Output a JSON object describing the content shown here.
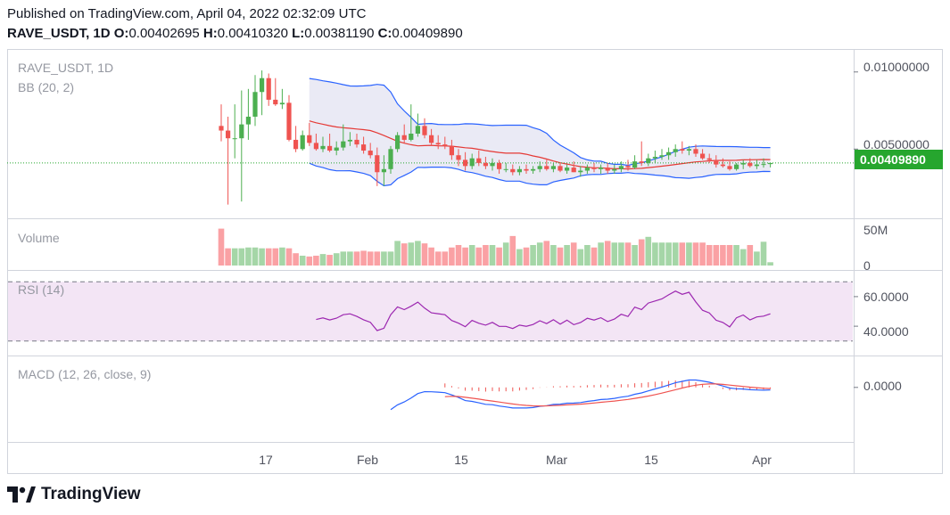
{
  "header": {
    "published": "Published on TradingView.com, April 04, 2022 02:32:09 UTC",
    "symbol_interval": "RAVE_USDT, 1D",
    "o_label": "O:",
    "o_value": "0.00402695",
    "h_label": "H:",
    "h_value": "0.00410320",
    "l_label": "L:",
    "l_value": "0.00381190",
    "c_label": "C:",
    "c_value": "0.00409890"
  },
  "panes": {
    "main_label": "RAVE_USDT, 1D",
    "bb_label": "BB (20, 2)",
    "volume_label": "Volume",
    "rsi_label": "RSI (14)",
    "macd_label": "MACD (12, 26, close, 9)"
  },
  "price_axis": {
    "top": "0.01000000",
    "mid": "0.00500000",
    "last_price": "0.00409890",
    "volume_top": "50M",
    "volume_zero": "0",
    "rsi_high": "60.0000",
    "rsi_low": "40.0000",
    "macd_zero": "0.0000"
  },
  "time_axis": [
    "17",
    "Feb",
    "15",
    "Mar",
    "15",
    "Apr"
  ],
  "brand": {
    "name": "TradingView"
  },
  "colors": {
    "up": "#4caf50",
    "down": "#ef5350",
    "up_volume": "#a5d6a7",
    "down_volume": "#faa1a4",
    "bb_upper_lower": "#2962ff",
    "bb_basis": "#e53935",
    "bb_fill": "#e8e8f4",
    "rsi_line": "#9c27b0",
    "rsi_band": "#f3e5f5",
    "macd_line": "#2962ff",
    "signal_line": "#ef5350",
    "hist": "#ef5350",
    "last_price_line": "#26a62e"
  },
  "chart_data": {
    "type": "candlestick",
    "dates": [
      "2022-01-13",
      "2022-01-14",
      "2022-01-15",
      "2022-01-16",
      "2022-01-17",
      "2022-01-18",
      "2022-01-19",
      "2022-01-20",
      "2022-01-21",
      "2022-01-22",
      "2022-01-23",
      "2022-01-24",
      "2022-01-25",
      "2022-01-26",
      "2022-01-27",
      "2022-01-28",
      "2022-01-29",
      "2022-01-30",
      "2022-01-31",
      "2022-02-01",
      "2022-02-02",
      "2022-02-03",
      "2022-02-04",
      "2022-02-05",
      "2022-02-06",
      "2022-02-07",
      "2022-02-08",
      "2022-02-09",
      "2022-02-10",
      "2022-02-11",
      "2022-02-12",
      "2022-02-13",
      "2022-02-14",
      "2022-02-15",
      "2022-02-16",
      "2022-02-17",
      "2022-02-18",
      "2022-02-19",
      "2022-02-20",
      "2022-02-21",
      "2022-02-22",
      "2022-02-23",
      "2022-02-24",
      "2022-02-25",
      "2022-02-26",
      "2022-02-27",
      "2022-02-28",
      "2022-03-01",
      "2022-03-02",
      "2022-03-03",
      "2022-03-04",
      "2022-03-05",
      "2022-03-06",
      "2022-03-07",
      "2022-03-08",
      "2022-03-09",
      "2022-03-10",
      "2022-03-11",
      "2022-03-12",
      "2022-03-13",
      "2022-03-14",
      "2022-03-15",
      "2022-03-16",
      "2022-03-17",
      "2022-03-18",
      "2022-03-19",
      "2022-03-20",
      "2022-03-21",
      "2022-03-22",
      "2022-03-23",
      "2022-03-24",
      "2022-03-25",
      "2022-03-26",
      "2022-03-27",
      "2022-03-28",
      "2022-03-29",
      "2022-03-30",
      "2022-03-31",
      "2022-04-01",
      "2022-04-02",
      "2022-04-03",
      "2022-04-04"
    ],
    "open": [
      0.0065,
      0.0062,
      0.0057,
      0.0057,
      0.0066,
      0.0071,
      0.0087,
      0.0096,
      0.0082,
      0.0079,
      0.008,
      0.0056,
      0.005,
      0.0059,
      0.0054,
      0.005,
      0.0052,
      0.0049,
      0.0051,
      0.0055,
      0.0056,
      0.0053,
      0.0049,
      0.0046,
      0.0035,
      0.0037,
      0.005,
      0.0059,
      0.0056,
      0.006,
      0.0065,
      0.0059,
      0.0054,
      0.0053,
      0.0052,
      0.0046,
      0.0043,
      0.0039,
      0.0044,
      0.0041,
      0.0039,
      0.0041,
      0.0037,
      0.0037,
      0.0035,
      0.0037,
      0.0036,
      0.0037,
      0.0039,
      0.0037,
      0.0039,
      0.0036,
      0.0038,
      0.0035,
      0.0036,
      0.0038,
      0.0037,
      0.0038,
      0.0036,
      0.0037,
      0.0039,
      0.0038,
      0.0042,
      0.0041,
      0.0044,
      0.0045,
      0.0046,
      0.0048,
      0.005,
      0.0049,
      0.005,
      0.0047,
      0.0044,
      0.0043,
      0.004,
      0.0039,
      0.0037,
      0.004,
      0.0041,
      0.0039,
      0.004,
      0.00402695
    ],
    "high": [
      0.0079,
      0.0071,
      0.0079,
      0.0088,
      0.0089,
      0.0098,
      0.0101,
      0.0099,
      0.0096,
      0.0089,
      0.0085,
      0.0065,
      0.0062,
      0.0067,
      0.006,
      0.0058,
      0.006,
      0.0055,
      0.0066,
      0.0061,
      0.006,
      0.0058,
      0.0054,
      0.0051,
      0.0046,
      0.0052,
      0.0061,
      0.0066,
      0.0079,
      0.0073,
      0.007,
      0.0063,
      0.0059,
      0.0058,
      0.0056,
      0.005,
      0.0048,
      0.0047,
      0.0049,
      0.0045,
      0.0044,
      0.0043,
      0.0041,
      0.004,
      0.0039,
      0.004,
      0.0039,
      0.0042,
      0.0043,
      0.0041,
      0.0041,
      0.004,
      0.0042,
      0.0039,
      0.004,
      0.0041,
      0.004,
      0.0041,
      0.004,
      0.0042,
      0.0043,
      0.0046,
      0.0055,
      0.0047,
      0.0049,
      0.005,
      0.0051,
      0.0053,
      0.0055,
      0.0052,
      0.0053,
      0.005,
      0.0047,
      0.0046,
      0.0044,
      0.0042,
      0.0041,
      0.0043,
      0.0044,
      0.0043,
      0.0044,
      0.0041032
    ],
    "low": [
      0.0055,
      0.0014,
      0.0044,
      0.0016,
      0.0056,
      0.0065,
      0.0072,
      0.0078,
      0.0078,
      0.0076,
      0.0055,
      0.0048,
      0.0049,
      0.0052,
      0.0049,
      0.0048,
      0.0048,
      0.0046,
      0.0049,
      0.0052,
      0.0051,
      0.0047,
      0.0044,
      0.0026,
      0.0026,
      0.0034,
      0.0048,
      0.0054,
      0.0055,
      0.0058,
      0.0057,
      0.0052,
      0.005,
      0.005,
      0.0043,
      0.0039,
      0.0036,
      0.0037,
      0.0039,
      0.0037,
      0.0036,
      0.0034,
      0.0035,
      0.0033,
      0.0033,
      0.0034,
      0.0034,
      0.0035,
      0.0036,
      0.0035,
      0.0035,
      0.0034,
      0.0035,
      0.0032,
      0.0034,
      0.0035,
      0.0034,
      0.0034,
      0.0034,
      0.0035,
      0.0036,
      0.0037,
      0.0039,
      0.0039,
      0.0041,
      0.0043,
      0.0043,
      0.0045,
      0.0047,
      0.0046,
      0.0045,
      0.0043,
      0.0041,
      0.0038,
      0.0038,
      0.0036,
      0.0036,
      0.0037,
      0.0038,
      0.0037,
      0.0038,
      0.0038119
    ],
    "close": [
      0.0062,
      0.0057,
      0.0057,
      0.0066,
      0.0071,
      0.0087,
      0.0096,
      0.0082,
      0.0079,
      0.008,
      0.0056,
      0.005,
      0.0059,
      0.0054,
      0.005,
      0.0052,
      0.0049,
      0.0051,
      0.0055,
      0.0056,
      0.0053,
      0.0049,
      0.0046,
      0.0035,
      0.0037,
      0.005,
      0.0059,
      0.0056,
      0.006,
      0.0065,
      0.0059,
      0.0054,
      0.0053,
      0.0052,
      0.0046,
      0.0043,
      0.0039,
      0.0044,
      0.0041,
      0.0039,
      0.0041,
      0.0037,
      0.0037,
      0.0035,
      0.0037,
      0.0036,
      0.0037,
      0.0039,
      0.0037,
      0.0039,
      0.0036,
      0.0038,
      0.0035,
      0.0036,
      0.0038,
      0.0037,
      0.0038,
      0.0036,
      0.0037,
      0.0039,
      0.0038,
      0.0042,
      0.0041,
      0.0044,
      0.0045,
      0.0046,
      0.0048,
      0.005,
      0.0049,
      0.005,
      0.0047,
      0.0044,
      0.0043,
      0.004,
      0.0039,
      0.0037,
      0.004,
      0.0041,
      0.0039,
      0.004,
      0.00402695,
      0.0040989
    ],
    "volume": [
      45,
      21,
      21,
      21,
      22,
      22,
      21,
      21,
      21,
      22,
      21,
      15,
      12,
      11,
      12,
      14,
      13,
      15,
      17,
      17,
      17,
      18,
      17,
      17,
      17,
      17,
      30,
      27,
      28,
      30,
      27,
      22,
      17,
      17,
      22,
      25,
      22,
      25,
      22,
      25,
      25,
      22,
      28,
      36,
      20,
      22,
      25,
      28,
      30,
      25,
      22,
      25,
      28,
      20,
      25,
      22,
      28,
      30,
      28,
      28,
      28,
      25,
      32,
      35,
      28,
      28,
      28,
      28,
      28,
      28,
      28,
      28,
      25,
      25,
      25,
      25,
      25,
      20,
      25,
      17,
      29,
      4
    ],
    "bb_range": [
      "2022-01-26",
      "2022-04-04"
    ],
    "price_ylim": [
      0.0008,
      0.0112
    ],
    "volume_ylim": [
      0,
      50
    ],
    "rsi_band": [
      30,
      70
    ],
    "rsi_ylim": [
      22,
      75
    ],
    "macd_ylim": [
      -0.0013,
      0.0007
    ]
  }
}
